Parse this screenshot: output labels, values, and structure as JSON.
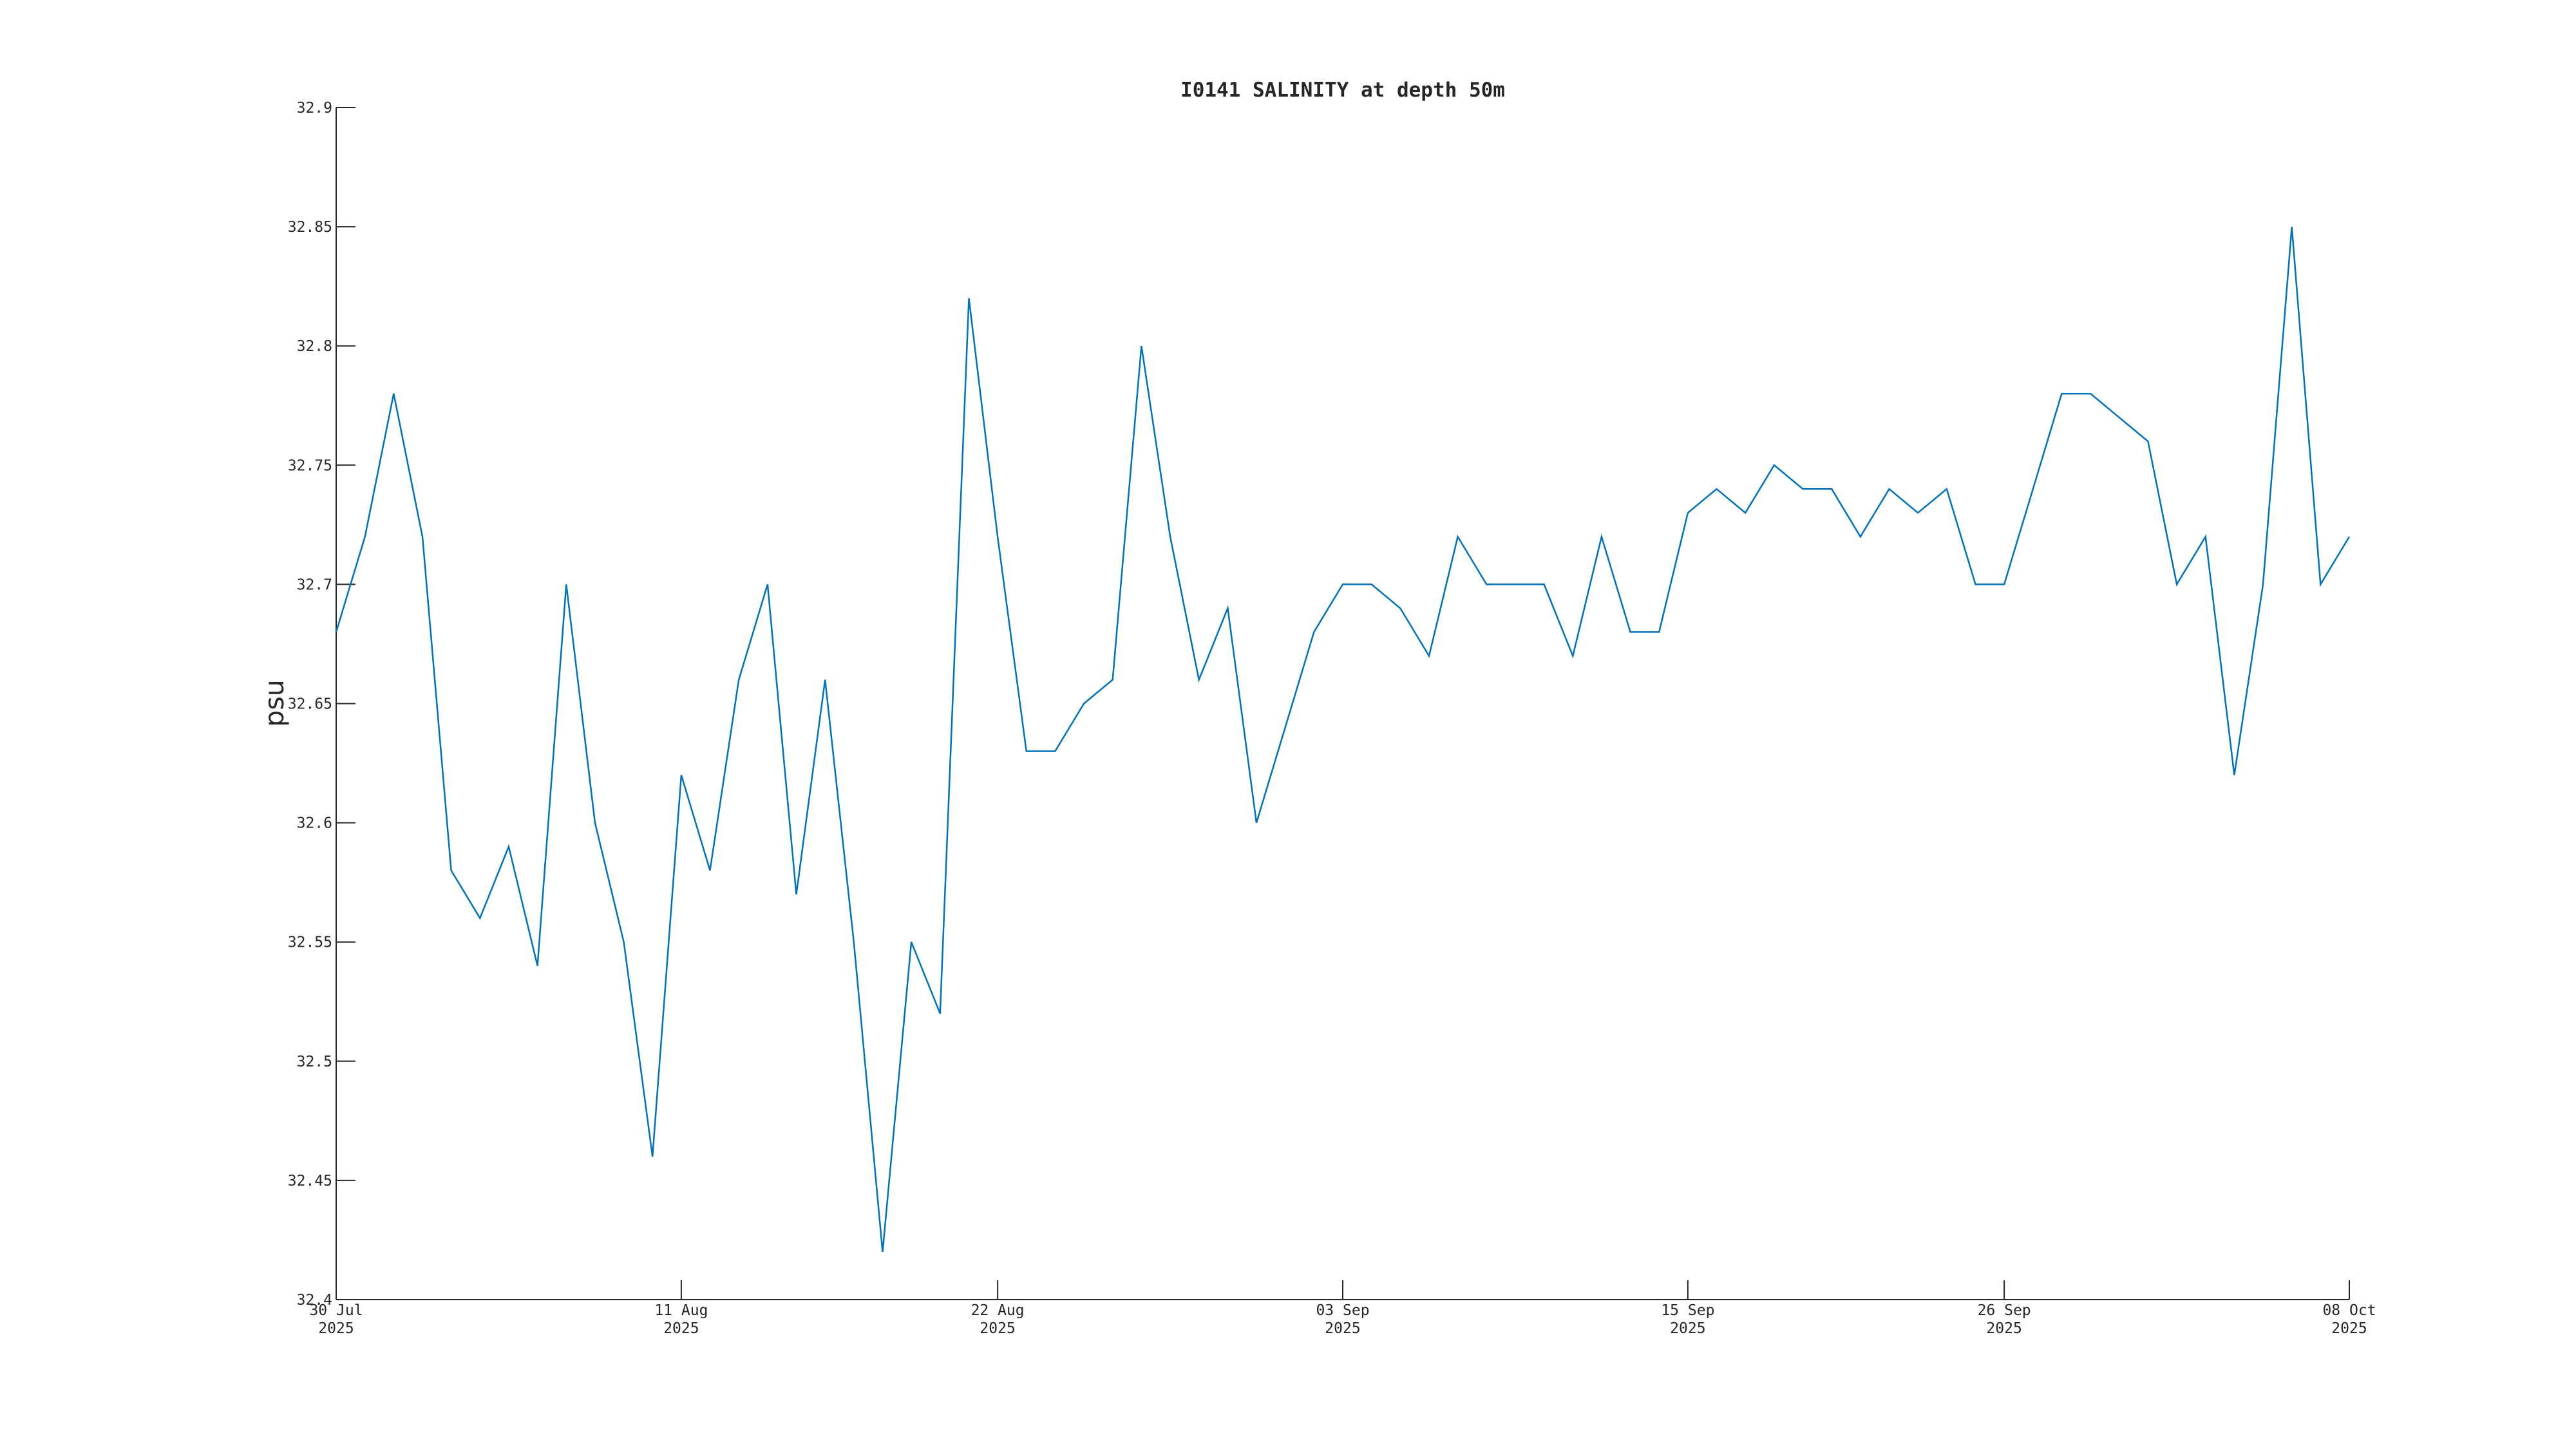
{
  "chart_data": {
    "type": "line",
    "title": "I0141 SALINITY at depth 50m",
    "y_label": "psu",
    "x": [
      "2025-07-30",
      "2025-07-31",
      "2025-08-01",
      "2025-08-02",
      "2025-08-03",
      "2025-08-04",
      "2025-08-05",
      "2025-08-06",
      "2025-08-07",
      "2025-08-08",
      "2025-08-09",
      "2025-08-10",
      "2025-08-11",
      "2025-08-12",
      "2025-08-13",
      "2025-08-14",
      "2025-08-15",
      "2025-08-16",
      "2025-08-17",
      "2025-08-18",
      "2025-08-19",
      "2025-08-20",
      "2025-08-21",
      "2025-08-22",
      "2025-08-23",
      "2025-08-24",
      "2025-08-25",
      "2025-08-26",
      "2025-08-27",
      "2025-08-28",
      "2025-08-29",
      "2025-08-30",
      "2025-08-31",
      "2025-09-01",
      "2025-09-02",
      "2025-09-03",
      "2025-09-04",
      "2025-09-05",
      "2025-09-06",
      "2025-09-07",
      "2025-09-08",
      "2025-09-09",
      "2025-09-10",
      "2025-09-11",
      "2025-09-12",
      "2025-09-13",
      "2025-09-14",
      "2025-09-15",
      "2025-09-16",
      "2025-09-17",
      "2025-09-18",
      "2025-09-19",
      "2025-09-20",
      "2025-09-21",
      "2025-09-22",
      "2025-09-23",
      "2025-09-24",
      "2025-09-25",
      "2025-09-26",
      "2025-09-27",
      "2025-09-28",
      "2025-09-29",
      "2025-09-30",
      "2025-10-01",
      "2025-10-02",
      "2025-10-03",
      "2025-10-04",
      "2025-10-05",
      "2025-10-06",
      "2025-10-07",
      "2025-10-08"
    ],
    "values": [
      32.68,
      32.72,
      32.78,
      32.72,
      32.58,
      32.56,
      32.59,
      32.54,
      32.7,
      32.6,
      32.55,
      32.46,
      32.62,
      32.58,
      32.66,
      32.7,
      32.57,
      32.66,
      32.55,
      32.42,
      32.55,
      32.52,
      32.82,
      32.72,
      32.63,
      32.63,
      32.65,
      32.66,
      32.8,
      32.72,
      32.66,
      32.69,
      32.6,
      32.64,
      32.68,
      32.7,
      32.7,
      32.69,
      32.67,
      32.72,
      32.7,
      32.7,
      32.7,
      32.67,
      32.72,
      32.68,
      32.68,
      32.73,
      32.74,
      32.73,
      32.75,
      32.74,
      32.74,
      32.72,
      32.74,
      32.73,
      32.74,
      32.7,
      32.7,
      32.74,
      32.78,
      32.78,
      32.77,
      32.76,
      32.7,
      32.72,
      32.62,
      32.7,
      32.85,
      32.7,
      32.72
    ],
    "color": "#0072bd",
    "xlim": [
      "2025-07-30",
      "2025-10-08"
    ],
    "xticks": [
      {
        "value": "2025-07-30",
        "label": "30 Jul\n2025"
      },
      {
        "value": "2025-08-11",
        "label": "11 Aug\n2025"
      },
      {
        "value": "2025-08-22",
        "label": "22 Aug\n2025"
      },
      {
        "value": "2025-09-03",
        "label": "03 Sep\n2025"
      },
      {
        "value": "2025-09-15",
        "label": "15 Sep\n2025"
      },
      {
        "value": "2025-09-26",
        "label": "26 Sep\n2025"
      },
      {
        "value": "2025-10-08",
        "label": "08 Oct\n2025"
      }
    ],
    "ylim": [
      32.4,
      32.9
    ],
    "yticks": [
      32.4,
      32.45,
      32.5,
      32.55,
      32.6,
      32.65,
      32.7,
      32.75,
      32.8,
      32.85,
      32.9
    ],
    "grid": false
  }
}
